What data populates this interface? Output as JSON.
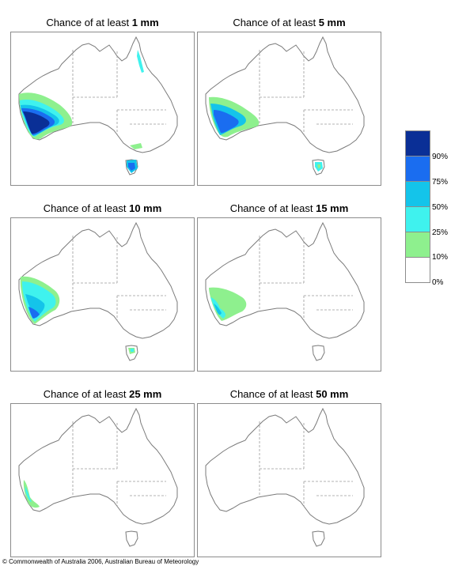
{
  "panels": [
    {
      "title_prefix": "Chance of at least ",
      "amount": "1 mm"
    },
    {
      "title_prefix": "Chance of at least ",
      "amount": "5 mm"
    },
    {
      "title_prefix": "Chance of at least ",
      "amount": "10 mm"
    },
    {
      "title_prefix": "Chance of at least ",
      "amount": "15 mm"
    },
    {
      "title_prefix": "Chance of at least ",
      "amount": "25 mm"
    },
    {
      "title_prefix": "Chance of at least ",
      "amount": "50 mm"
    }
  ],
  "legend": {
    "bands": [
      {
        "color": "#0a2f96",
        "range": "90-100%"
      },
      {
        "color": "#1a6df0",
        "range": "75-90%"
      },
      {
        "color": "#14c4ea",
        "range": "50-75%"
      },
      {
        "color": "#3ff2ee",
        "range": "25-50%"
      },
      {
        "color": "#8ef08e",
        "range": "10-25%"
      },
      {
        "color": "#ffffff",
        "range": "0-10%"
      }
    ],
    "labels": [
      "90%",
      "75%",
      "50%",
      "25%",
      "10%",
      "0%"
    ]
  },
  "map_style": {
    "coast_color": "#7a7a7a",
    "border_color": "#9a9a9a"
  },
  "copyright": "© Commonwealth of Australia 2006, Australian Bureau of Meteorology"
}
